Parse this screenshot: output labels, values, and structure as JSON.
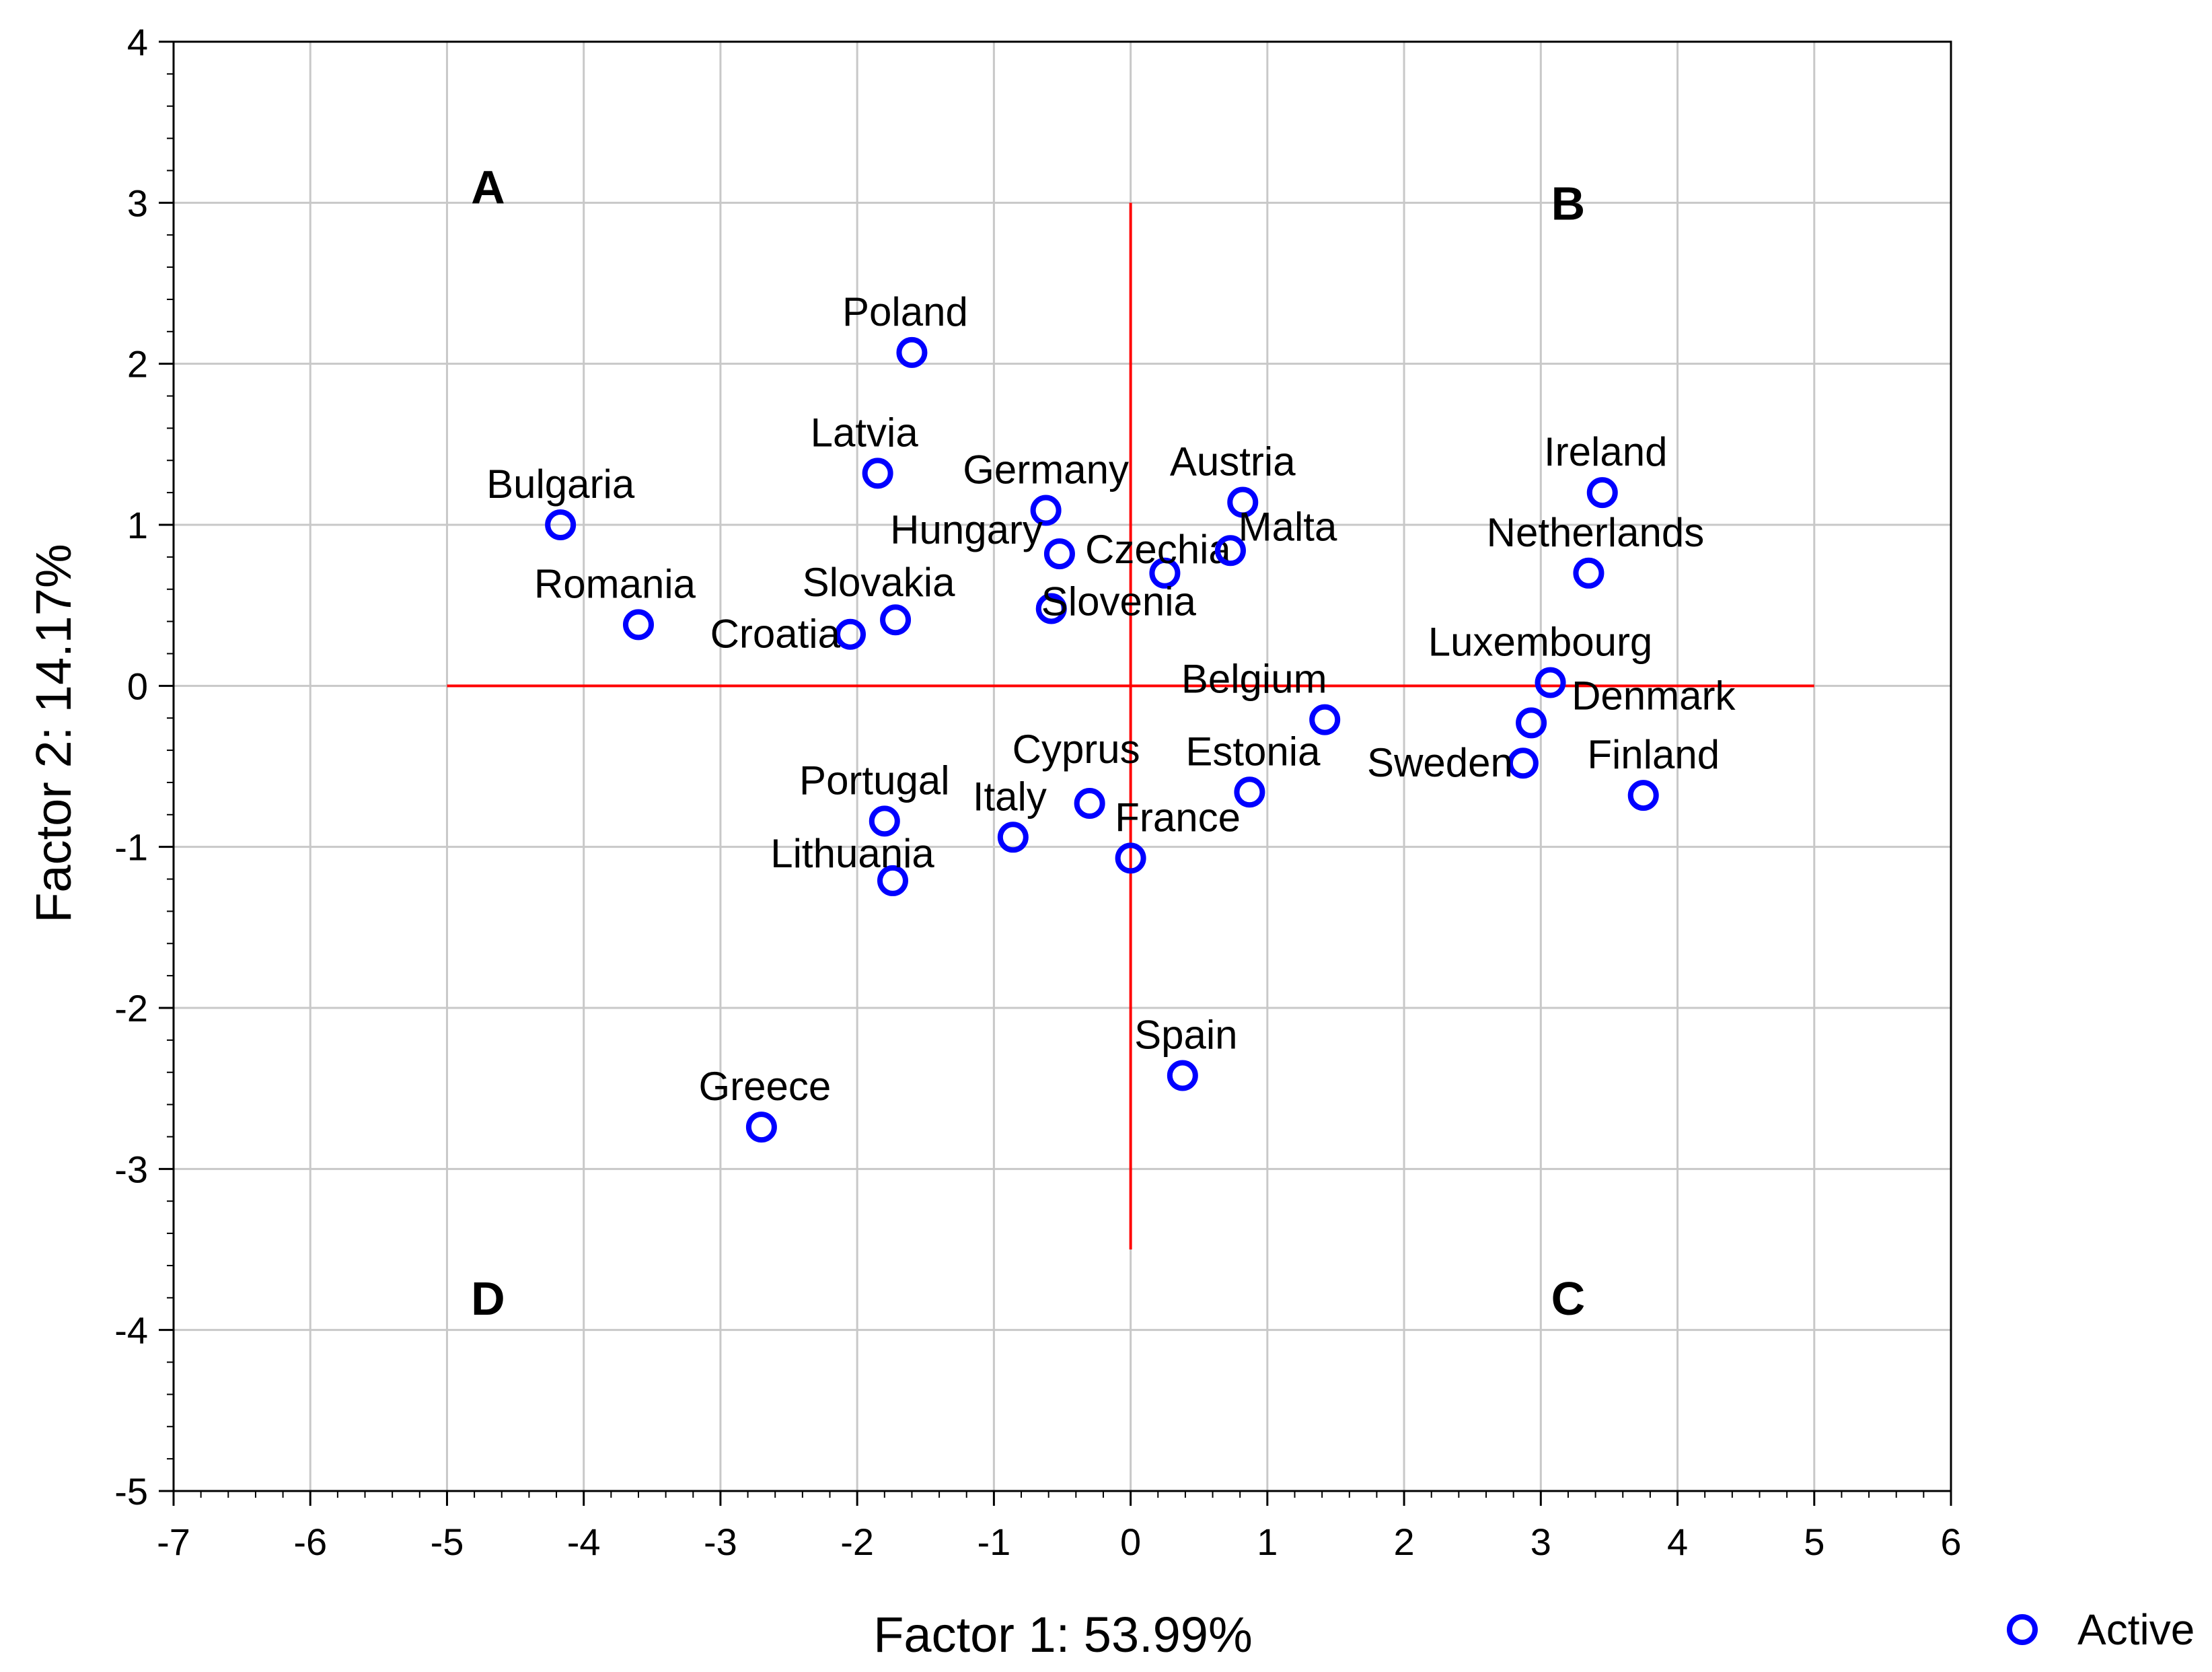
{
  "chart_data": {
    "type": "scatter",
    "title": "",
    "xlabel": "Factor 1: 53.99%",
    "ylabel": "Factor 2: 14.17%",
    "xlim": [
      -7,
      6
    ],
    "ylim": [
      -5,
      4
    ],
    "x_ticks": [
      -7,
      -6,
      -5,
      -4,
      -3,
      -2,
      -1,
      0,
      1,
      2,
      3,
      4,
      5,
      6
    ],
    "y_ticks": [
      -5,
      -4,
      -3,
      -2,
      -1,
      0,
      1,
      2,
      3,
      4
    ],
    "grid": true,
    "legend": {
      "position": "bottom-right",
      "entries": [
        "Active"
      ]
    },
    "marker_color": "#0000ff",
    "reference_line_color": "#ff0000",
    "reference_lines": {
      "horizontal": {
        "y": 0,
        "x_from": -5,
        "x_to": 5
      },
      "vertical": {
        "x": 0,
        "y_from": -3.5,
        "y_to": 3
      }
    },
    "quadrant_labels": [
      {
        "text": "A",
        "x": -4.7,
        "y": 3.1
      },
      {
        "text": "B",
        "x": 3.2,
        "y": 3.0
      },
      {
        "text": "C",
        "x": 3.2,
        "y": -3.8
      },
      {
        "text": "D",
        "x": -4.7,
        "y": -3.8
      }
    ],
    "series": [
      {
        "name": "Active",
        "points": [
          {
            "label": "Poland",
            "x": -1.6,
            "y": 2.07
          },
          {
            "label": "Latvia",
            "x": -1.85,
            "y": 1.32
          },
          {
            "label": "Bulgaria",
            "x": -4.17,
            "y": 1.0
          },
          {
            "label": "Germany",
            "x": -0.62,
            "y": 1.09
          },
          {
            "label": "Hungary",
            "x": -0.52,
            "y": 0.82
          },
          {
            "label": "Austria",
            "x": 0.82,
            "y": 1.14
          },
          {
            "label": "Czechia",
            "x": 0.25,
            "y": 0.7
          },
          {
            "label": "Malta",
            "x": 0.73,
            "y": 0.84
          },
          {
            "label": "Romania",
            "x": -3.6,
            "y": 0.38
          },
          {
            "label": "Slovakia",
            "x": -1.72,
            "y": 0.41
          },
          {
            "label": "Croatia",
            "x": -2.05,
            "y": 0.32
          },
          {
            "label": "Slovenia",
            "x": -0.58,
            "y": 0.48
          },
          {
            "label": "Ireland",
            "x": 3.45,
            "y": 1.2
          },
          {
            "label": "Netherlands",
            "x": 3.35,
            "y": 0.7
          },
          {
            "label": "Luxembourg",
            "x": 3.07,
            "y": 0.02
          },
          {
            "label": "Denmark",
            "x": 2.93,
            "y": -0.23
          },
          {
            "label": "Belgium",
            "x": 1.42,
            "y": -0.21
          },
          {
            "label": "Sweden",
            "x": 2.87,
            "y": -0.48
          },
          {
            "label": "Finland",
            "x": 3.75,
            "y": -0.68
          },
          {
            "label": "Estonia",
            "x": 0.87,
            "y": -0.66
          },
          {
            "label": "Cyprus",
            "x": -0.3,
            "y": -0.73
          },
          {
            "label": "France",
            "x": 0.0,
            "y": -1.07
          },
          {
            "label": "Portugal",
            "x": -1.8,
            "y": -0.84
          },
          {
            "label": "Italy",
            "x": -0.86,
            "y": -0.94
          },
          {
            "label": "Lithuania",
            "x": -1.74,
            "y": -1.21
          },
          {
            "label": "Spain",
            "x": 0.38,
            "y": -2.42
          },
          {
            "label": "Greece",
            "x": -2.7,
            "y": -2.74
          }
        ]
      }
    ]
  }
}
